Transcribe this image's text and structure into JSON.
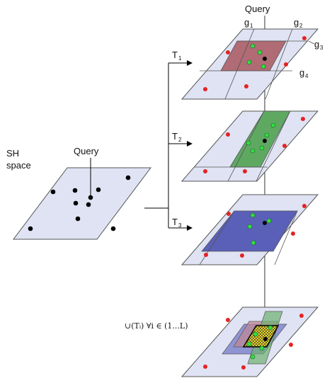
{
  "left_panel": {
    "space_label_line1": "SH",
    "space_label_line2": "space",
    "query_label": "Query"
  },
  "right_panel": {
    "query_label": "Query",
    "grid_labels": [
      {
        "base": "g",
        "sub": "1"
      },
      {
        "base": "g",
        "sub": "2"
      },
      {
        "base": "g",
        "sub": "3"
      },
      {
        "base": "g",
        "sub": "4"
      }
    ],
    "tables": [
      {
        "base": "T",
        "sub": "1",
        "highlight_color": "#b06b75"
      },
      {
        "base": "T",
        "sub": "2",
        "highlight_color": "#5fa862"
      },
      {
        "base": "T",
        "sub": "3",
        "highlight_color": "#5a5fb8"
      }
    ],
    "union_formula": "∪(Tᵢ) ∀i ∈ (1...L)"
  },
  "colors": {
    "plane_fill": "#dfe3f3",
    "plane_stroke": "#555555",
    "point_red": "#e52222",
    "point_green": "#33dd44",
    "point_black": "#000000",
    "union_yellow": "#f2e02a"
  }
}
